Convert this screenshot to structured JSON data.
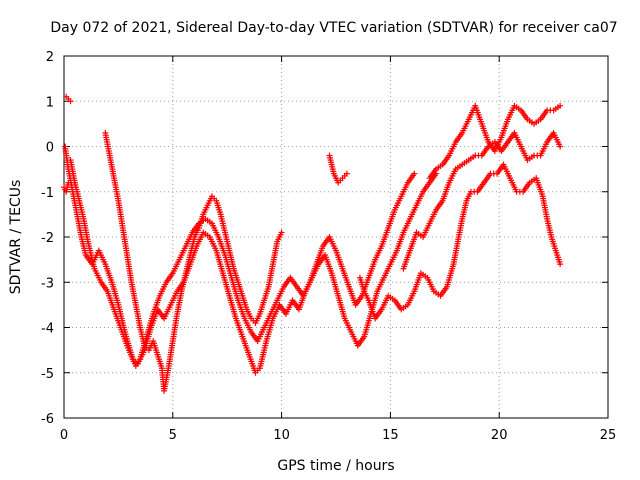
{
  "chart_data": {
    "type": "scatter",
    "title": "Day 072 of 2021, Sidereal Day-to-day VTEC variation (SDTVAR) for receiver ca07",
    "xlabel": "GPS time / hours",
    "ylabel": "SDTVAR / TECUs",
    "xlim": [
      0,
      25
    ],
    "ylim": [
      -6,
      2
    ],
    "xticks": [
      0,
      5,
      10,
      15,
      20,
      25
    ],
    "yticks": [
      -6,
      -5,
      -4,
      -3,
      -2,
      -1,
      0,
      1,
      2
    ],
    "x_tick_labels": [
      "0",
      "5",
      "10",
      "15",
      "20",
      "25"
    ],
    "y_tick_labels": [
      "-6",
      "-5",
      "-4",
      "-3",
      "-2",
      "-1",
      "0",
      "1",
      "2"
    ],
    "grid": true,
    "marker": "+",
    "color": "#ff0000",
    "series": [
      {
        "points": [
          [
            0.05,
            0.0
          ],
          [
            0.2,
            -0.5
          ],
          [
            0.4,
            -1.0
          ],
          [
            0.6,
            -1.5
          ],
          [
            0.8,
            -2.0
          ],
          [
            1.0,
            -2.4
          ],
          [
            1.3,
            -2.6
          ],
          [
            1.6,
            -2.3
          ],
          [
            1.9,
            -2.6
          ],
          [
            2.2,
            -3.0
          ],
          [
            2.5,
            -3.5
          ],
          [
            2.8,
            -4.1
          ],
          [
            3.1,
            -4.6
          ],
          [
            3.3,
            -4.85
          ],
          [
            3.5,
            -4.7
          ],
          [
            3.8,
            -4.2
          ],
          [
            4.1,
            -3.7
          ],
          [
            4.4,
            -3.3
          ],
          [
            4.7,
            -3.0
          ],
          [
            5.0,
            -2.8
          ],
          [
            5.3,
            -2.5
          ],
          [
            5.6,
            -2.2
          ],
          [
            5.9,
            -1.9
          ],
          [
            6.2,
            -1.7
          ],
          [
            6.5,
            -1.6
          ],
          [
            6.8,
            -1.7
          ],
          [
            7.1,
            -2.0
          ],
          [
            7.4,
            -2.4
          ],
          [
            7.7,
            -2.9
          ],
          [
            8.0,
            -3.4
          ],
          [
            8.3,
            -3.8
          ],
          [
            8.6,
            -4.1
          ],
          [
            8.9,
            -4.3
          ],
          [
            9.2,
            -4.0
          ],
          [
            9.5,
            -3.7
          ],
          [
            9.8,
            -3.4
          ],
          [
            10.1,
            -3.1
          ],
          [
            10.4,
            -2.9
          ],
          [
            10.7,
            -3.1
          ],
          [
            11.0,
            -3.3
          ],
          [
            11.3,
            -3.0
          ],
          [
            11.6,
            -2.6
          ],
          [
            11.9,
            -2.2
          ],
          [
            12.2,
            -2.0
          ],
          [
            12.5,
            -2.3
          ],
          [
            12.8,
            -2.7
          ],
          [
            13.1,
            -3.1
          ],
          [
            13.4,
            -3.5
          ],
          [
            13.7,
            -3.3
          ],
          [
            14.0,
            -2.9
          ],
          [
            14.3,
            -2.5
          ],
          [
            14.6,
            -2.2
          ],
          [
            14.9,
            -1.8
          ],
          [
            15.2,
            -1.4
          ],
          [
            15.5,
            -1.1
          ],
          [
            15.8,
            -0.8
          ],
          [
            16.1,
            -0.6
          ]
        ]
      },
      {
        "points": [
          [
            0.3,
            -0.3
          ],
          [
            0.5,
            -0.8
          ],
          [
            0.7,
            -1.2
          ],
          [
            0.9,
            -1.6
          ],
          [
            1.1,
            -2.1
          ],
          [
            1.4,
            -2.7
          ],
          [
            1.7,
            -3.0
          ],
          [
            2.0,
            -3.2
          ],
          [
            2.3,
            -3.6
          ],
          [
            2.6,
            -4.0
          ],
          [
            2.9,
            -4.4
          ],
          [
            3.2,
            -4.75
          ],
          [
            3.4,
            -4.8
          ],
          [
            3.7,
            -4.5
          ],
          [
            4.0,
            -4.0
          ],
          [
            4.3,
            -3.6
          ],
          [
            4.6,
            -3.8
          ],
          [
            4.9,
            -3.5
          ],
          [
            5.2,
            -3.2
          ],
          [
            5.5,
            -3.0
          ],
          [
            5.8,
            -2.6
          ],
          [
            6.1,
            -2.2
          ],
          [
            6.4,
            -1.9
          ],
          [
            6.7,
            -2.0
          ],
          [
            7.0,
            -2.3
          ],
          [
            7.3,
            -2.8
          ],
          [
            7.6,
            -3.3
          ],
          [
            7.9,
            -3.8
          ],
          [
            8.2,
            -4.2
          ],
          [
            8.5,
            -4.6
          ],
          [
            8.8,
            -5.0
          ],
          [
            9.0,
            -4.9
          ],
          [
            9.3,
            -4.3
          ],
          [
            9.6,
            -3.8
          ],
          [
            9.9,
            -3.5
          ],
          [
            10.2,
            -3.7
          ],
          [
            10.5,
            -3.4
          ],
          [
            10.8,
            -3.6
          ],
          [
            11.1,
            -3.2
          ],
          [
            11.4,
            -2.9
          ],
          [
            11.7,
            -2.6
          ],
          [
            12.0,
            -2.4
          ],
          [
            12.3,
            -2.8
          ],
          [
            12.6,
            -3.3
          ],
          [
            12.9,
            -3.8
          ],
          [
            13.2,
            -4.1
          ],
          [
            13.5,
            -4.4
          ],
          [
            13.8,
            -4.2
          ],
          [
            14.1,
            -3.7
          ],
          [
            14.4,
            -3.2
          ],
          [
            14.7,
            -2.9
          ],
          [
            15.0,
            -2.6
          ],
          [
            15.3,
            -2.3
          ],
          [
            15.6,
            -1.9
          ],
          [
            15.9,
            -1.6
          ],
          [
            16.2,
            -1.3
          ],
          [
            16.5,
            -1.0
          ],
          [
            16.8,
            -0.8
          ],
          [
            17.1,
            -0.6
          ]
        ]
      },
      {
        "points": [
          [
            1.9,
            0.3
          ],
          [
            2.1,
            -0.2
          ],
          [
            2.3,
            -0.7
          ],
          [
            2.5,
            -1.2
          ],
          [
            2.7,
            -1.8
          ],
          [
            2.9,
            -2.4
          ],
          [
            3.1,
            -3.0
          ],
          [
            3.3,
            -3.5
          ],
          [
            3.5,
            -4.0
          ],
          [
            3.7,
            -4.4
          ],
          [
            3.9,
            -4.5
          ],
          [
            4.1,
            -4.3
          ],
          [
            4.3,
            -4.6
          ],
          [
            4.5,
            -4.9
          ],
          [
            4.6,
            -5.4
          ],
          [
            4.8,
            -4.9
          ],
          [
            5.0,
            -4.3
          ],
          [
            5.2,
            -3.7
          ],
          [
            5.4,
            -3.2
          ],
          [
            5.6,
            -2.8
          ],
          [
            5.8,
            -2.4
          ],
          [
            6.0,
            -2.0
          ],
          [
            6.2,
            -1.8
          ],
          [
            6.4,
            -1.5
          ],
          [
            6.6,
            -1.3
          ],
          [
            6.8,
            -1.1
          ],
          [
            7.0,
            -1.2
          ],
          [
            7.2,
            -1.5
          ],
          [
            7.4,
            -1.9
          ],
          [
            7.6,
            -2.3
          ],
          [
            7.8,
            -2.7
          ],
          [
            8.0,
            -3.0
          ],
          [
            8.2,
            -3.3
          ],
          [
            8.4,
            -3.6
          ],
          [
            8.6,
            -3.8
          ],
          [
            8.8,
            -3.9
          ],
          [
            9.0,
            -3.7
          ],
          [
            9.2,
            -3.4
          ],
          [
            9.4,
            -3.1
          ],
          [
            9.6,
            -2.6
          ],
          [
            9.8,
            -2.1
          ],
          [
            10.0,
            -1.9
          ]
        ]
      },
      {
        "points": [
          [
            12.2,
            -0.2
          ],
          [
            12.4,
            -0.6
          ],
          [
            12.6,
            -0.8
          ],
          [
            12.8,
            -0.7
          ],
          [
            13.0,
            -0.6
          ]
        ]
      },
      {
        "points": [
          [
            13.6,
            -2.9
          ],
          [
            13.8,
            -3.2
          ],
          [
            14.0,
            -3.4
          ],
          [
            14.3,
            -3.8
          ],
          [
            14.6,
            -3.6
          ],
          [
            14.9,
            -3.3
          ],
          [
            15.2,
            -3.4
          ],
          [
            15.5,
            -3.6
          ],
          [
            15.8,
            -3.5
          ],
          [
            16.1,
            -3.2
          ],
          [
            16.4,
            -2.8
          ],
          [
            16.7,
            -2.9
          ],
          [
            17.0,
            -3.2
          ],
          [
            17.3,
            -3.3
          ],
          [
            17.6,
            -3.1
          ],
          [
            17.9,
            -2.6
          ],
          [
            18.1,
            -2.1
          ],
          [
            18.3,
            -1.6
          ],
          [
            18.5,
            -1.2
          ],
          [
            18.7,
            -1.0
          ],
          [
            19.0,
            -1.0
          ],
          [
            19.3,
            -0.8
          ],
          [
            19.6,
            -0.6
          ],
          [
            19.9,
            -0.6
          ],
          [
            20.2,
            -0.4
          ],
          [
            20.5,
            -0.7
          ],
          [
            20.8,
            -1.0
          ],
          [
            21.1,
            -1.0
          ],
          [
            21.4,
            -0.8
          ],
          [
            21.7,
            -0.7
          ],
          [
            22.0,
            -1.1
          ],
          [
            22.2,
            -1.6
          ],
          [
            22.4,
            -2.0
          ],
          [
            22.6,
            -2.3
          ],
          [
            22.8,
            -2.6
          ]
        ]
      },
      {
        "points": [
          [
            15.6,
            -2.7
          ],
          [
            15.9,
            -2.3
          ],
          [
            16.2,
            -1.9
          ],
          [
            16.5,
            -2.0
          ],
          [
            16.8,
            -1.7
          ],
          [
            17.1,
            -1.4
          ],
          [
            17.4,
            -1.2
          ],
          [
            17.7,
            -0.8
          ],
          [
            18.0,
            -0.5
          ],
          [
            18.3,
            -0.4
          ],
          [
            18.6,
            -0.3
          ],
          [
            18.9,
            -0.2
          ],
          [
            19.2,
            -0.2
          ],
          [
            19.5,
            0.0
          ],
          [
            19.8,
            0.1
          ],
          [
            20.1,
            -0.1
          ],
          [
            20.4,
            0.1
          ],
          [
            20.7,
            0.3
          ],
          [
            21.0,
            0.0
          ],
          [
            21.3,
            -0.3
          ],
          [
            21.6,
            -0.2
          ],
          [
            21.9,
            -0.2
          ],
          [
            22.2,
            0.1
          ],
          [
            22.5,
            0.3
          ],
          [
            22.8,
            0.0
          ]
        ]
      },
      {
        "points": [
          [
            16.8,
            -0.7
          ],
          [
            17.1,
            -0.5
          ],
          [
            17.4,
            -0.4
          ],
          [
            17.7,
            -0.2
          ],
          [
            18.0,
            0.1
          ],
          [
            18.3,
            0.3
          ],
          [
            18.6,
            0.6
          ],
          [
            18.9,
            0.9
          ],
          [
            19.2,
            0.5
          ],
          [
            19.5,
            0.1
          ],
          [
            19.8,
            -0.1
          ],
          [
            20.1,
            0.2
          ],
          [
            20.4,
            0.6
          ],
          [
            20.7,
            0.9
          ],
          [
            21.0,
            0.8
          ],
          [
            21.3,
            0.6
          ],
          [
            21.6,
            0.5
          ],
          [
            21.9,
            0.6
          ],
          [
            22.2,
            0.8
          ],
          [
            22.5,
            0.8
          ],
          [
            22.8,
            0.9
          ]
        ]
      },
      {
        "points": [
          [
            0.1,
            1.1
          ],
          [
            0.2,
            1.05
          ],
          [
            0.3,
            1.0
          ]
        ]
      },
      {
        "points": [
          [
            0.0,
            -0.9
          ],
          [
            0.1,
            -1.0
          ],
          [
            0.2,
            -0.8
          ]
        ]
      }
    ]
  }
}
